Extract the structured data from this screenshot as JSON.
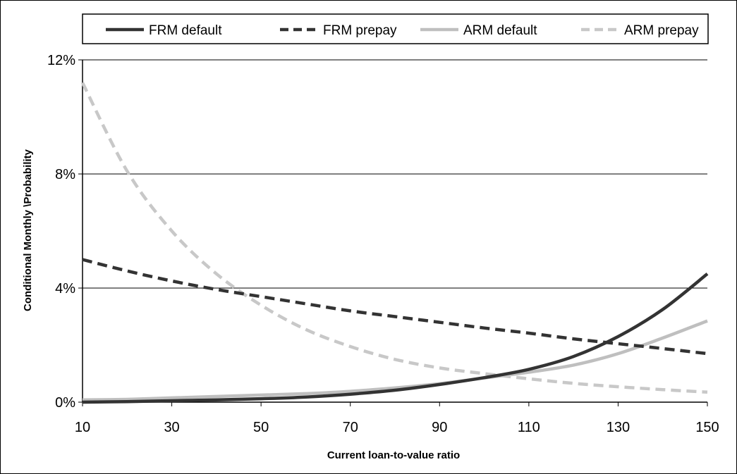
{
  "chart_data": {
    "type": "line",
    "xlabel": "Current loan-to-value ratio",
    "ylabel": "Conditional Monthly \\Probability",
    "xlim": [
      10,
      150
    ],
    "ylim": [
      0,
      12
    ],
    "x_ticks": [
      10,
      30,
      50,
      70,
      90,
      110,
      130,
      150
    ],
    "y_ticks": [
      0,
      4,
      8,
      12
    ],
    "y_tick_labels": [
      "0%",
      "4%",
      "8%",
      "12%"
    ],
    "grid": "horizontal",
    "legend_position": "top",
    "x": [
      10,
      20,
      30,
      40,
      50,
      60,
      70,
      80,
      90,
      100,
      110,
      120,
      130,
      140,
      150
    ],
    "series": [
      {
        "name": "FRM default",
        "color": "#333333",
        "dash": "solid",
        "values": [
          0.0,
          0.02,
          0.05,
          0.08,
          0.12,
          0.18,
          0.28,
          0.42,
          0.62,
          0.86,
          1.15,
          1.6,
          2.3,
          3.25,
          4.5
        ]
      },
      {
        "name": "FRM prepay",
        "color": "#333333",
        "dash": "dashed",
        "values": [
          5.0,
          4.6,
          4.25,
          3.95,
          3.7,
          3.45,
          3.2,
          3.0,
          2.8,
          2.6,
          2.42,
          2.22,
          2.05,
          1.88,
          1.7
        ]
      },
      {
        "name": "ARM default",
        "color": "#bfbfbf",
        "dash": "solid",
        "values": [
          0.08,
          0.1,
          0.15,
          0.2,
          0.25,
          0.3,
          0.38,
          0.5,
          0.65,
          0.85,
          1.05,
          1.3,
          1.7,
          2.25,
          2.85
        ]
      },
      {
        "name": "ARM prepay",
        "color": "#c8c8c8",
        "dash": "dashed",
        "values": [
          11.2,
          8.1,
          6.0,
          4.5,
          3.4,
          2.55,
          1.95,
          1.5,
          1.2,
          1.0,
          0.82,
          0.66,
          0.54,
          0.44,
          0.35
        ]
      }
    ]
  }
}
